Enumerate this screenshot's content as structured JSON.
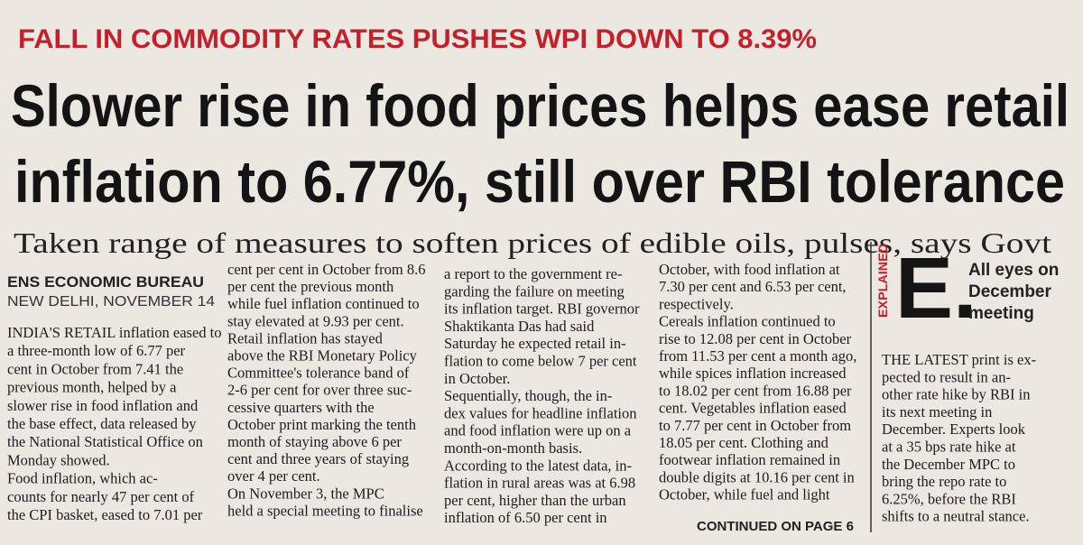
{
  "kicker": "FALL IN COMMODITY RATES PUSHES WPI DOWN TO 8.39%",
  "headline": [
    "Slower rise in food prices helps ease retail",
    "inflation to 6.77%, still over RBI tolerance"
  ],
  "subhead": "Taken range of measures to soften prices of edible oils, pulses, says Govt",
  "byline": "ENS ECONOMIC BUREAU",
  "dateline": "NEW DELHI, NOVEMBER 14",
  "columns": [
    [
      "INDIA'S RETAIL inflation eased to",
      "a three-month low of 6.77 per",
      "cent in October from 7.41 the",
      "previous month, helped by a",
      "slower rise in food inflation and",
      "the base effect, data released by",
      "the National Statistical Office on",
      "Monday showed.",
      "Food inflation, which ac-",
      "counts for nearly 47 per cent of",
      "the CPI basket, eased to 7.01 per"
    ],
    [
      "cent per cent in October from 8.6",
      "per cent the previous month",
      "while fuel inflation continued to",
      "stay elevated at 9.93 per cent.",
      "Retail inflation has stayed",
      "above the RBI Monetary Policy",
      "Committee's tolerance band of",
      "2-6 per cent for over three suc-",
      "cessive quarters with the",
      "October print marking the tenth",
      "month of staying above 6 per",
      "cent and three years of staying",
      "over 4 per cent.",
      "On November 3, the MPC",
      "held a special meeting to finalise"
    ],
    [
      "a report to the government re-",
      "garding the failure on meeting",
      "its inflation target. RBI governor",
      "Shaktikanta Das had said",
      "Saturday he expected retail in-",
      "flation to come below 7 per cent",
      "in October.",
      "Sequentially, though, the in-",
      "dex values for headline inflation",
      "and food inflation were up on a",
      "month-on-month basis.",
      "According to the latest data, in-",
      "flation in rural areas was at 6.98",
      "per cent, higher than the urban",
      "inflation of 6.50 per cent in"
    ],
    [
      "October, with food inflation at",
      "7.30 per cent and 6.53 per cent,",
      "respectively.",
      "Cereals inflation continued to",
      "rise to 12.08 per cent in October",
      "from 11.53 per cent a month ago,",
      "while spices inflation increased",
      "to 18.02 per cent from 16.88 per",
      "cent. Vegetables inflation eased",
      "to 7.77 per cent in October from",
      "18.05 per cent. Clothing and",
      "footwear inflation remained in",
      "double digits at 10.16 per cent in",
      "October, while fuel and light"
    ]
  ],
  "continued": "CONTINUED ON PAGE 6",
  "explained": {
    "label": "EXPLAINED",
    "letter": "E.",
    "title": [
      "All eyes on",
      "December",
      "meeting"
    ],
    "body": [
      "THE LATEST print is ex-",
      "pected to result in an-",
      "other rate hike by RBI in",
      "its next meeting in",
      "December. Experts look",
      "at a 35 bps rate hike at",
      "the December MPC to",
      "bring the repo rate to",
      "6.25%, before the RBI",
      "shifts to a neutral stance."
    ]
  }
}
